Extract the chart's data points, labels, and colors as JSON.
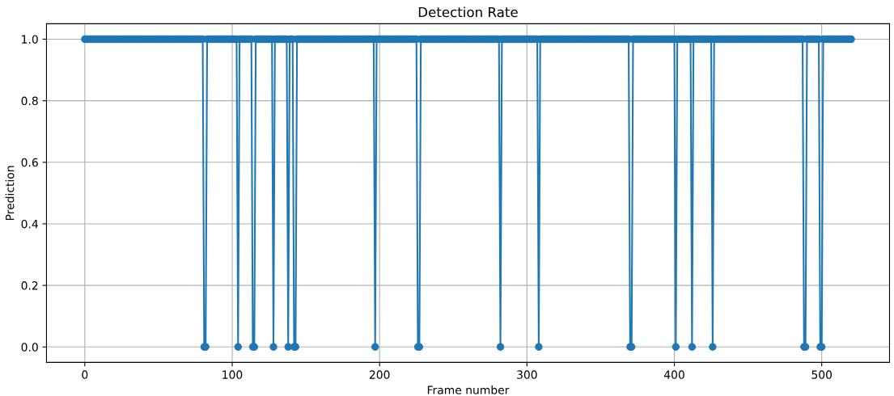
{
  "chart_data": {
    "type": "line",
    "title": "Detection Rate",
    "xlabel": "Frame number",
    "ylabel": "Prediction",
    "x": [
      0,
      1,
      2,
      3,
      4,
      5,
      6,
      7,
      8,
      9,
      10,
      11,
      12,
      13,
      14,
      15,
      16,
      17,
      18,
      19,
      20,
      21,
      22,
      23,
      24,
      25,
      26,
      27,
      28,
      29,
      30,
      31,
      32,
      33,
      34,
      35,
      36,
      37,
      38,
      39,
      40,
      41,
      42,
      43,
      44,
      45,
      46,
      47,
      48,
      49,
      50,
      51,
      52,
      53,
      54,
      55,
      56,
      57,
      58,
      59,
      60,
      61,
      62,
      63,
      64,
      65,
      66,
      67,
      68,
      69,
      70,
      71,
      72,
      73,
      74,
      75,
      76,
      77,
      78,
      79,
      80,
      81,
      82,
      83,
      84,
      85,
      86,
      87,
      88,
      89,
      90,
      91,
      92,
      93,
      94,
      95,
      96,
      97,
      98,
      99,
      100,
      101,
      102,
      103,
      104,
      105,
      106,
      107,
      108,
      109,
      110,
      111,
      112,
      113,
      114,
      115,
      116,
      117,
      118,
      119,
      120,
      121,
      122,
      123,
      124,
      125,
      126,
      127,
      128,
      129,
      130,
      131,
      132,
      133,
      134,
      135,
      136,
      137,
      138,
      139,
      140,
      141,
      142,
      143,
      144,
      145,
      146,
      147,
      148,
      149,
      150,
      151,
      152,
      153,
      154,
      155,
      156,
      157,
      158,
      159,
      160,
      161,
      162,
      163,
      164,
      165,
      166,
      167,
      168,
      169,
      170,
      171,
      172,
      173,
      174,
      175,
      176,
      177,
      178,
      179,
      180,
      181,
      182,
      183,
      184,
      185,
      186,
      187,
      188,
      189,
      190,
      191,
      192,
      193,
      194,
      195,
      196,
      197,
      198,
      199,
      200,
      201,
      202,
      203,
      204,
      205,
      206,
      207,
      208,
      209,
      210,
      211,
      212,
      213,
      214,
      215,
      216,
      217,
      218,
      219,
      220,
      221,
      222,
      223,
      224,
      225,
      226,
      227,
      228,
      229,
      230,
      231,
      232,
      233,
      234,
      235,
      236,
      237,
      238,
      239,
      240,
      241,
      242,
      243,
      244,
      245,
      246,
      247,
      248,
      249,
      250,
      251,
      252,
      253,
      254,
      255,
      256,
      257,
      258,
      259,
      260,
      261,
      262,
      263,
      264,
      265,
      266,
      267,
      268,
      269,
      270,
      271,
      272,
      273,
      274,
      275,
      276,
      277,
      278,
      279,
      280,
      281,
      282,
      283,
      284,
      285,
      286,
      287,
      288,
      289,
      290,
      291,
      292,
      293,
      294,
      295,
      296,
      297,
      298,
      299,
      300,
      301,
      302,
      303,
      304,
      305,
      306,
      307,
      308,
      309,
      310,
      311,
      312,
      313,
      314,
      315,
      316,
      317,
      318,
      319,
      320,
      321,
      322,
      323,
      324,
      325,
      326,
      327,
      328,
      329,
      330,
      331,
      332,
      333,
      334,
      335,
      336,
      337,
      338,
      339,
      340,
      341,
      342,
      343,
      344,
      345,
      346,
      347,
      348,
      349,
      350,
      351,
      352,
      353,
      354,
      355,
      356,
      357,
      358,
      359,
      360,
      361,
      362,
      363,
      364,
      365,
      366,
      367,
      368,
      369,
      370,
      371,
      372,
      373,
      374,
      375,
      376,
      377,
      378,
      379,
      380,
      381,
      382,
      383,
      384,
      385,
      386,
      387,
      388,
      389,
      390,
      391,
      392,
      393,
      394,
      395,
      396,
      397,
      398,
      399,
      400,
      401,
      402,
      403,
      404,
      405,
      406,
      407,
      408,
      409,
      410,
      411,
      412,
      413,
      414,
      415,
      416,
      417,
      418,
      419,
      420,
      421,
      422,
      423,
      424,
      425,
      426,
      427,
      428,
      429,
      430,
      431,
      432,
      433,
      434,
      435,
      436,
      437,
      438,
      439,
      440,
      441,
      442,
      443,
      444,
      445,
      446,
      447,
      448,
      449,
      450,
      451,
      452,
      453,
      454,
      455,
      456,
      457,
      458,
      459,
      460,
      461,
      462,
      463,
      464,
      465,
      466,
      467,
      468,
      469,
      470,
      471,
      472,
      473,
      474,
      475,
      476,
      477,
      478,
      479,
      480,
      481,
      482,
      483,
      484,
      485,
      486,
      487,
      488,
      489,
      490,
      491,
      492,
      493,
      494,
      495,
      496,
      497,
      498,
      499,
      500,
      501,
      502,
      503,
      504,
      505,
      506,
      507,
      508,
      509,
      510,
      511,
      512,
      513,
      514,
      515,
      516,
      517,
      518,
      519,
      520
    ],
    "series": [
      {
        "color": "#1f77b4",
        "values": [
          1,
          1,
          1,
          1,
          1,
          1,
          1,
          1,
          1,
          1,
          1,
          1,
          1,
          1,
          1,
          1,
          1,
          1,
          1,
          1,
          1,
          1,
          1,
          1,
          1,
          1,
          1,
          1,
          1,
          1,
          1,
          1,
          1,
          1,
          1,
          1,
          1,
          1,
          1,
          1,
          1,
          1,
          1,
          1,
          1,
          1,
          1,
          1,
          1,
          1,
          1,
          1,
          1,
          1,
          1,
          1,
          1,
          1,
          1,
          1,
          1,
          1,
          1,
          1,
          1,
          1,
          1,
          1,
          1,
          1,
          1,
          1,
          1,
          1,
          1,
          1,
          1,
          1,
          1,
          1,
          1,
          0,
          0,
          1,
          1,
          1,
          1,
          1,
          1,
          1,
          1,
          1,
          1,
          1,
          1,
          1,
          1,
          1,
          1,
          1,
          1,
          1,
          1,
          1,
          0,
          1,
          1,
          1,
          1,
          1,
          1,
          1,
          1,
          1,
          0,
          0,
          1,
          1,
          1,
          1,
          1,
          1,
          1,
          1,
          1,
          1,
          1,
          1,
          0,
          1,
          1,
          1,
          1,
          1,
          1,
          1,
          1,
          1,
          0,
          1,
          1,
          1,
          0,
          0,
          1,
          1,
          1,
          1,
          1,
          1,
          1,
          1,
          1,
          1,
          1,
          1,
          1,
          1,
          1,
          1,
          1,
          1,
          1,
          1,
          1,
          1,
          1,
          1,
          1,
          1,
          1,
          1,
          1,
          1,
          1,
          1,
          1,
          1,
          1,
          1,
          1,
          1,
          1,
          1,
          1,
          1,
          1,
          1,
          1,
          1,
          1,
          1,
          1,
          1,
          1,
          1,
          1,
          0,
          1,
          1,
          1,
          1,
          1,
          1,
          1,
          1,
          1,
          1,
          1,
          1,
          1,
          1,
          1,
          1,
          1,
          1,
          1,
          1,
          1,
          1,
          1,
          1,
          1,
          1,
          1,
          1,
          0,
          0,
          1,
          1,
          1,
          1,
          1,
          1,
          1,
          1,
          1,
          1,
          1,
          1,
          1,
          1,
          1,
          1,
          1,
          1,
          1,
          1,
          1,
          1,
          1,
          1,
          1,
          1,
          1,
          1,
          1,
          1,
          1,
          1,
          1,
          1,
          1,
          1,
          1,
          1,
          1,
          1,
          1,
          1,
          1,
          1,
          1,
          1,
          1,
          1,
          1,
          1,
          1,
          1,
          1,
          1,
          0,
          1,
          1,
          1,
          1,
          1,
          1,
          1,
          1,
          1,
          1,
          1,
          1,
          1,
          1,
          1,
          1,
          1,
          1,
          1,
          1,
          1,
          1,
          1,
          1,
          1,
          0,
          1,
          1,
          1,
          1,
          1,
          1,
          1,
          1,
          1,
          1,
          1,
          1,
          1,
          1,
          1,
          1,
          1,
          1,
          1,
          1,
          1,
          1,
          1,
          1,
          1,
          1,
          1,
          1,
          1,
          1,
          1,
          1,
          1,
          1,
          1,
          1,
          1,
          1,
          1,
          1,
          1,
          1,
          1,
          1,
          1,
          1,
          1,
          1,
          1,
          1,
          1,
          1,
          1,
          1,
          1,
          1,
          1,
          1,
          1,
          1,
          1,
          0,
          0,
          1,
          1,
          1,
          1,
          1,
          1,
          1,
          1,
          1,
          1,
          1,
          1,
          1,
          1,
          1,
          1,
          1,
          1,
          1,
          1,
          1,
          1,
          1,
          1,
          1,
          1,
          1,
          1,
          1,
          0,
          1,
          1,
          1,
          1,
          1,
          1,
          1,
          1,
          1,
          1,
          0,
          1,
          1,
          1,
          1,
          1,
          1,
          1,
          1,
          1,
          1,
          1,
          1,
          1,
          0,
          1,
          1,
          1,
          1,
          1,
          1,
          1,
          1,
          1,
          1,
          1,
          1,
          1,
          1,
          1,
          1,
          1,
          1,
          1,
          1,
          1,
          1,
          1,
          1,
          1,
          1,
          1,
          1,
          1,
          1,
          1,
          1,
          1,
          1,
          1,
          1,
          1,
          1,
          1,
          1,
          1,
          1,
          1,
          1,
          1,
          1,
          1,
          1,
          1,
          1,
          1,
          1,
          1,
          1,
          1,
          1,
          1,
          1,
          1,
          1,
          1,
          0,
          0,
          1,
          1,
          1,
          1,
          1,
          1,
          1,
          1,
          1,
          0,
          0,
          1,
          1,
          1,
          1,
          1,
          1,
          1,
          1,
          1,
          1,
          1,
          1,
          1,
          1,
          1,
          1,
          1,
          1,
          1,
          1
        ]
      }
    ],
    "xlim": [
      -26,
      546
    ],
    "ylim": [
      -0.05,
      1.05
    ],
    "xticks": [
      0,
      100,
      200,
      300,
      400,
      500
    ],
    "yticks": [
      {
        "value": 0,
        "label": "0.0"
      },
      {
        "value": 0.2,
        "label": "0.2"
      },
      {
        "value": 0.4,
        "label": "0.4"
      },
      {
        "value": 0.6,
        "label": "0.6"
      },
      {
        "value": 0.8,
        "label": "0.8"
      },
      {
        "value": 1,
        "label": "1.0"
      }
    ],
    "grid": true,
    "marker": "circle",
    "line_style": "solid"
  }
}
